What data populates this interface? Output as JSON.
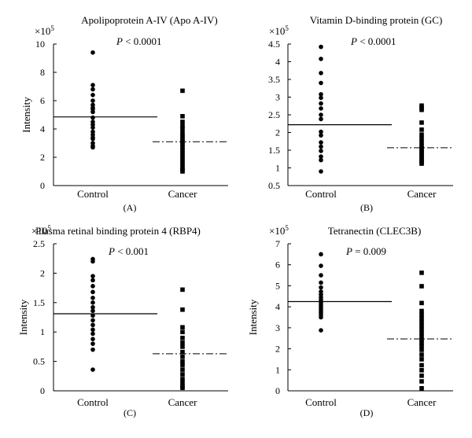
{
  "chart_data": [
    {
      "type": "scatter",
      "panel_label": "(A)",
      "title": "Apolipoprotein A-IV (Apo A-IV)",
      "pvalue": {
        "prefix": "P",
        "rest": " < 0.0001"
      },
      "ylabel": "Intensity",
      "scale_note": {
        "base": "×10",
        "exp": "5"
      },
      "ylim": [
        0,
        10
      ],
      "yticks": [
        0,
        2,
        4,
        6,
        8,
        10
      ],
      "categories": [
        "Control",
        "Cancer"
      ],
      "series": [
        {
          "name": "Control",
          "marker": "circle",
          "mean": 4.85,
          "values": [
            9.4,
            7.1,
            6.8,
            6.4,
            6.0,
            5.7,
            5.5,
            5.4,
            5.2,
            4.8,
            4.5,
            4.3,
            4.1,
            3.8,
            3.6,
            3.4,
            3.3,
            3.0,
            2.8,
            2.7
          ]
        },
        {
          "name": "Cancer",
          "marker": "square",
          "mean": 3.1,
          "values": [
            6.7,
            4.9,
            4.5,
            4.2,
            4.0,
            3.7,
            3.5,
            3.3,
            3.1,
            2.9,
            2.7,
            2.5,
            2.3,
            2.1,
            1.9,
            1.7,
            1.5,
            1.3,
            1.1,
            1.0
          ]
        }
      ]
    },
    {
      "type": "scatter",
      "panel_label": "(B)",
      "title": "Vitamin D-binding protein (GC)",
      "pvalue": {
        "prefix": "P",
        "rest": " < 0.0001"
      },
      "ylabel": "",
      "scale_note": {
        "base": "×10",
        "exp": "5"
      },
      "ylim": [
        0.5,
        4.5
      ],
      "yticks": [
        0.5,
        1,
        1.5,
        2,
        2.5,
        3,
        3.5,
        4,
        4.5
      ],
      "categories": [
        "Control",
        "Cancer"
      ],
      "series": [
        {
          "name": "Control",
          "marker": "circle",
          "mean": 2.22,
          "values": [
            4.42,
            4.08,
            3.68,
            3.4,
            3.08,
            2.98,
            2.82,
            2.68,
            2.5,
            2.38,
            2.02,
            1.92,
            1.72,
            1.6,
            1.48,
            1.32,
            1.22,
            0.9
          ]
        },
        {
          "name": "Cancer",
          "marker": "square",
          "mean": 1.57,
          "values": [
            2.76,
            2.7,
            2.64,
            2.28,
            2.08,
            1.94,
            1.82,
            1.72,
            1.62,
            1.56,
            1.5,
            1.44,
            1.38,
            1.32,
            1.26,
            1.2,
            1.16,
            1.12
          ]
        }
      ]
    },
    {
      "type": "scatter",
      "panel_label": "(C)",
      "title": "Plasma retinal binding protein 4 (RBP4)",
      "pvalue": {
        "prefix": "P",
        "rest": " < 0.001"
      },
      "ylabel": "Intensity",
      "scale_note": {
        "base": "×10",
        "exp": "5"
      },
      "ylim": [
        0,
        2.5
      ],
      "yticks": [
        0,
        0.5,
        1,
        1.5,
        2,
        2.5
      ],
      "categories": [
        "Control",
        "Cancer"
      ],
      "series": [
        {
          "name": "Control",
          "marker": "circle",
          "mean": 1.31,
          "values": [
            2.24,
            2.2,
            1.95,
            1.88,
            1.78,
            1.68,
            1.58,
            1.5,
            1.42,
            1.36,
            1.28,
            1.2,
            1.12,
            1.04,
            0.97,
            0.88,
            0.8,
            0.7,
            0.36
          ]
        },
        {
          "name": "Cancer",
          "marker": "square",
          "mean": 0.63,
          "values": [
            1.72,
            1.38,
            1.08,
            1.0,
            0.9,
            0.82,
            0.75,
            0.66,
            0.58,
            0.5,
            0.44,
            0.36,
            0.28,
            0.2,
            0.14,
            0.08,
            0.05
          ]
        }
      ]
    },
    {
      "type": "scatter",
      "panel_label": "(D)",
      "title": "Tetranectin (CLEC3B)",
      "pvalue": {
        "prefix": "P",
        "rest": " = 0.009"
      },
      "ylabel": "Intensity",
      "scale_note": {
        "base": "×10",
        "exp": "5"
      },
      "ylim": [
        0,
        7
      ],
      "yticks": [
        0,
        1,
        2,
        3,
        4,
        5,
        6,
        7
      ],
      "categories": [
        "Control",
        "Cancer"
      ],
      "series": [
        {
          "name": "Control",
          "marker": "circle",
          "mean": 4.25,
          "values": [
            6.5,
            5.95,
            5.5,
            5.15,
            4.92,
            4.72,
            4.58,
            4.45,
            4.33,
            4.22,
            4.12,
            4.02,
            3.92,
            3.82,
            3.72,
            3.62,
            3.5,
            2.88
          ]
        },
        {
          "name": "Cancer",
          "marker": "square",
          "mean": 2.47,
          "values": [
            5.62,
            4.98,
            4.18,
            3.8,
            3.62,
            3.45,
            3.28,
            3.1,
            2.92,
            2.75,
            2.58,
            2.42,
            2.28,
            2.12,
            1.95,
            1.72,
            1.5,
            1.22,
            0.98,
            0.72,
            0.45,
            0.12
          ]
        }
      ]
    }
  ]
}
